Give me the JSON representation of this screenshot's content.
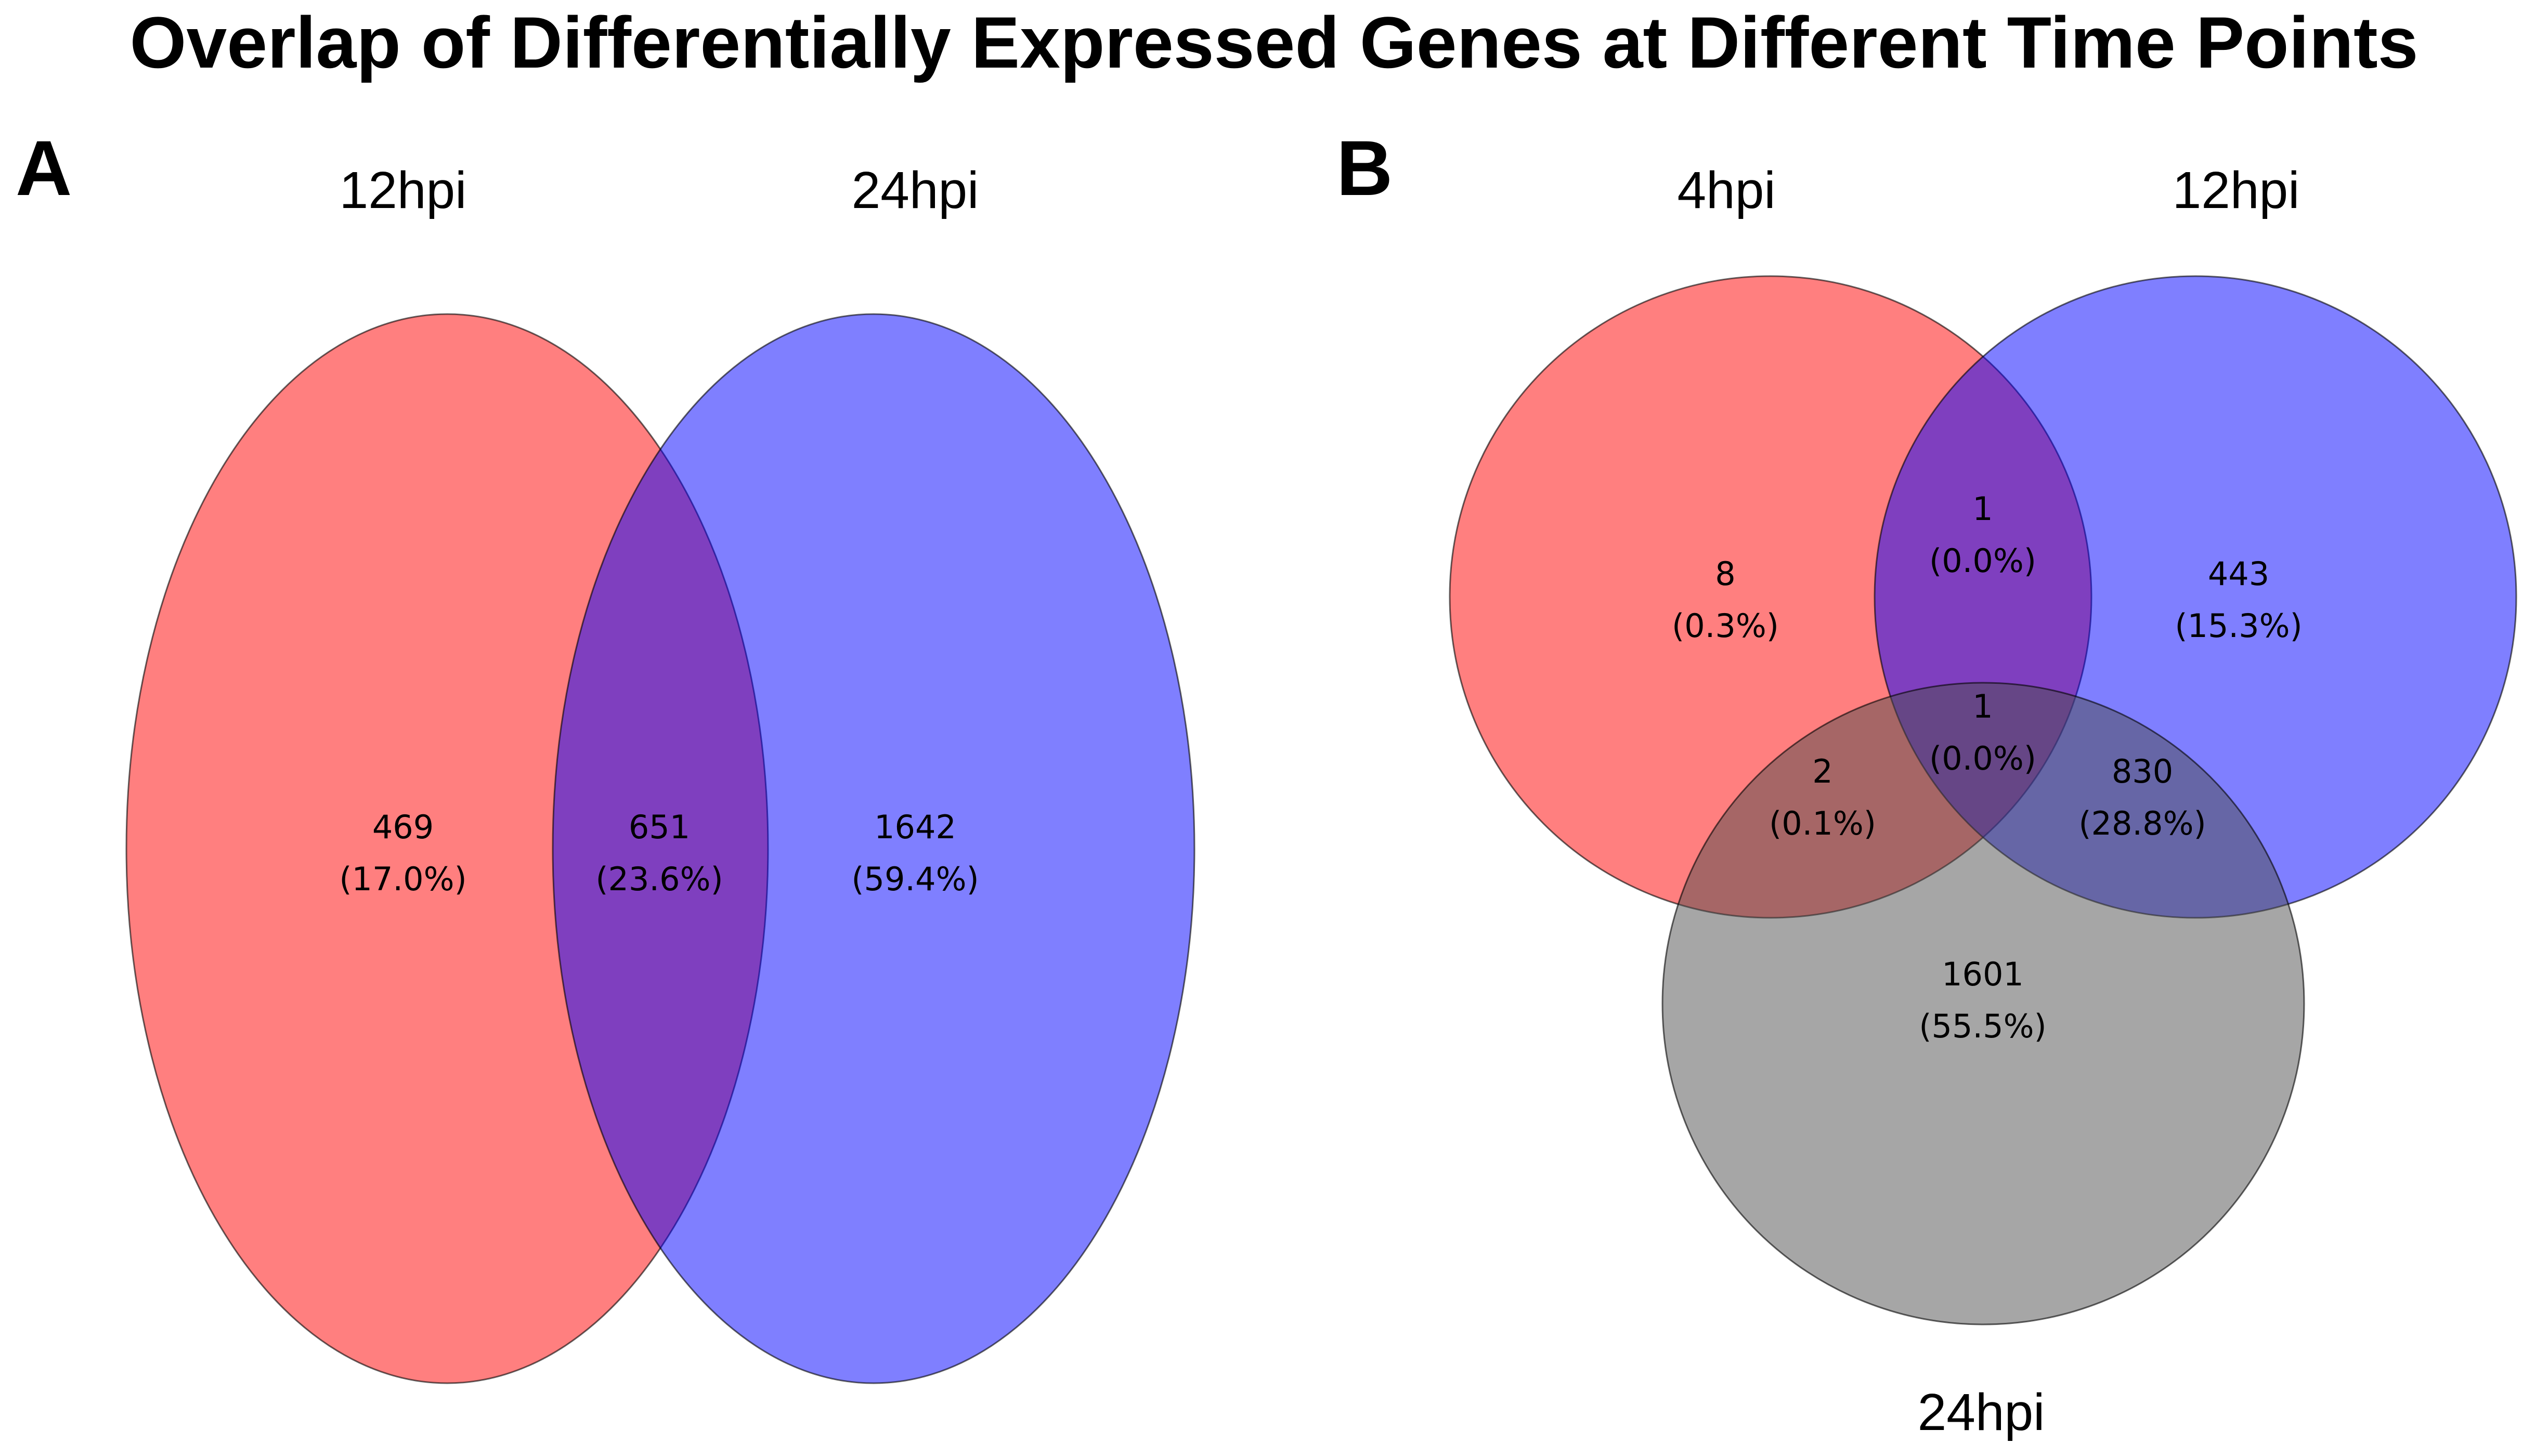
{
  "title": "Overlap of Differentially Expressed Genes at Different Time Points",
  "panels": {
    "A": {
      "label": "A",
      "sets": [
        {
          "name": "12hpi",
          "color": "#ff0000"
        },
        {
          "name": "24hpi",
          "color": "#0000ff"
        }
      ],
      "regions": [
        {
          "sets": [
            "12hpi"
          ],
          "count": "469",
          "percent": "(17.0%)"
        },
        {
          "sets": [
            "12hpi",
            "24hpi"
          ],
          "count": "651",
          "percent": "(23.6%)"
        },
        {
          "sets": [
            "24hpi"
          ],
          "count": "1642",
          "percent": "(59.4%)"
        }
      ]
    },
    "B": {
      "label": "B",
      "sets": [
        {
          "name": "4hpi",
          "color": "#ff0000"
        },
        {
          "name": "12hpi",
          "color": "#0000ff"
        },
        {
          "name": "24hpi",
          "color": "#4d4d4d"
        }
      ],
      "regions": [
        {
          "sets": [
            "4hpi"
          ],
          "count": "8",
          "percent": "(0.3%)"
        },
        {
          "sets": [
            "4hpi",
            "12hpi"
          ],
          "count": "1",
          "percent": "(0.0%)"
        },
        {
          "sets": [
            "12hpi"
          ],
          "count": "443",
          "percent": "(15.3%)"
        },
        {
          "sets": [
            "4hpi",
            "12hpi",
            "24hpi"
          ],
          "count": "1",
          "percent": "(0.0%)"
        },
        {
          "sets": [
            "4hpi",
            "24hpi"
          ],
          "count": "2",
          "percent": "(0.1%)"
        },
        {
          "sets": [
            "12hpi",
            "24hpi"
          ],
          "count": "830",
          "percent": "(28.8%)"
        },
        {
          "sets": [
            "24hpi"
          ],
          "count": "1601",
          "percent": "(55.5%)"
        }
      ]
    }
  }
}
